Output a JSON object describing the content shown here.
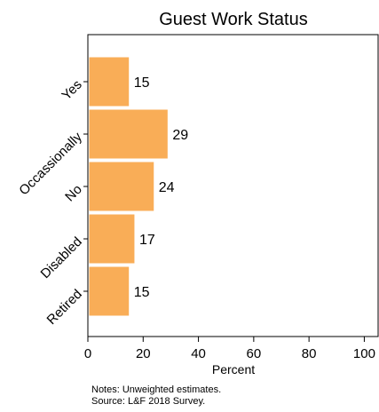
{
  "chart_data": {
    "type": "bar",
    "orientation": "horizontal",
    "title": "Guest Work Status",
    "categories": [
      "Yes",
      "Occassionally",
      "No",
      "Disabled",
      "Retired"
    ],
    "values": [
      15,
      29,
      24,
      17,
      15
    ],
    "data_labels": [
      "15",
      "29",
      "24",
      "17",
      "15"
    ],
    "xlabel": "Percent",
    "ylabel": "",
    "xlim": [
      0,
      105
    ],
    "xticks": [
      0,
      20,
      40,
      60,
      80,
      100
    ],
    "xtick_labels": [
      "0",
      "20",
      "40",
      "60",
      "80",
      "100"
    ],
    "grid": false,
    "legend": "none",
    "bar_color": "#f9ad57",
    "bar_edge_color": "#ffffff"
  },
  "notes": {
    "line1": "Notes: Unweighted estimates.",
    "line2": "Source: L&F 2018 Survey."
  }
}
